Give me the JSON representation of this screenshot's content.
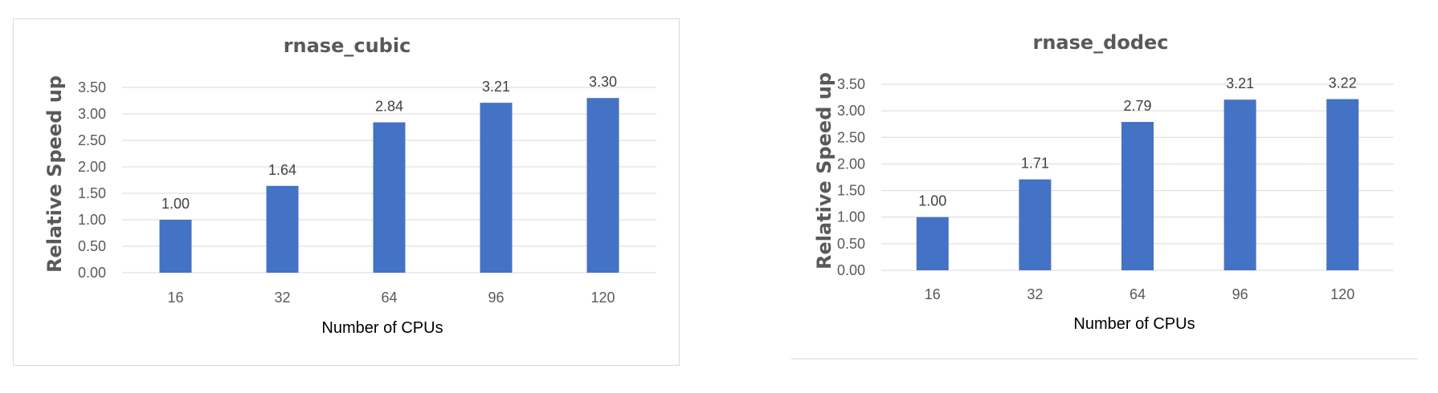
{
  "chart_data": [
    {
      "type": "bar",
      "title": "rnase_cubic",
      "xlabel": "Number of CPUs",
      "ylabel": "Relative Speed up",
      "categories": [
        "16",
        "32",
        "64",
        "96",
        "120"
      ],
      "values": [
        1.0,
        1.64,
        2.84,
        3.21,
        3.3
      ],
      "value_labels": [
        "1.00",
        "1.64",
        "2.84",
        "3.21",
        "3.30"
      ],
      "y_ticks": [
        "0.00",
        "0.50",
        "1.00",
        "1.50",
        "2.00",
        "2.50",
        "3.00",
        "3.50"
      ],
      "ylim": [
        0,
        3.5
      ],
      "grid": true,
      "bar_color": "#4472c4"
    },
    {
      "type": "bar",
      "title": "rnase_dodec",
      "xlabel": "Number of CPUs",
      "ylabel": "Relative Speed up",
      "categories": [
        "16",
        "32",
        "64",
        "96",
        "120"
      ],
      "values": [
        1.0,
        1.71,
        2.79,
        3.21,
        3.22
      ],
      "value_labels": [
        "1.00",
        "1.71",
        "2.79",
        "3.21",
        "3.22"
      ],
      "y_ticks": [
        "0.00",
        "0.50",
        "1.00",
        "1.50",
        "2.00",
        "2.50",
        "3.00",
        "3.50"
      ],
      "ylim": [
        0,
        3.5
      ],
      "grid": true,
      "bar_color": "#4472c4"
    }
  ]
}
